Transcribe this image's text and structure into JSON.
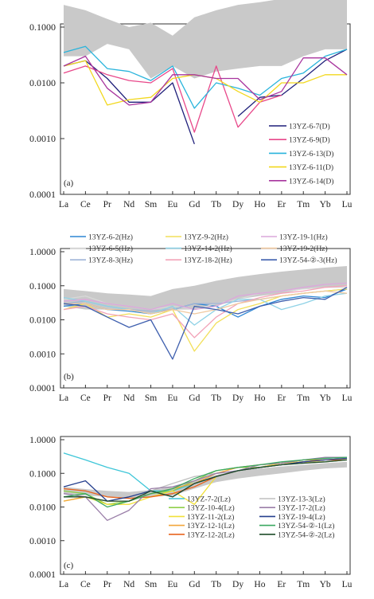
{
  "elements": [
    "La",
    "Ce",
    "Pr",
    "Nd",
    "Sm",
    "Eu",
    "Gd",
    "Tb",
    "Dy",
    "Ho",
    "Er",
    "Tm",
    "Yb",
    "Lu"
  ],
  "colors": {
    "band": "#c9c9c9",
    "axis": "#333333"
  },
  "chart_data": [
    {
      "type": "line",
      "panel_label": "(a)",
      "x": [
        "La",
        "Ce",
        "Pr",
        "Nd",
        "Sm",
        "Eu",
        "Gd",
        "Tb",
        "Dy",
        "Ho",
        "Er",
        "Tm",
        "Yb",
        "Lu"
      ],
      "y_scale": "log",
      "ylim": [
        0.0001,
        1.0
      ],
      "y_ticks": [
        "0.1000",
        "0.0100",
        "0.0010",
        "0.0001"
      ],
      "y_tick_values": [
        0.1,
        0.01,
        0.001,
        0.0001
      ],
      "band": {
        "lower": [
          0.03,
          0.03,
          0.05,
          0.04,
          0.012,
          0.02,
          0.012,
          0.016,
          0.018,
          0.02,
          0.02,
          0.03,
          0.04,
          0.04
        ],
        "upper": [
          0.25,
          0.2,
          0.14,
          0.1,
          0.12,
          0.07,
          0.15,
          0.2,
          0.25,
          0.28,
          0.32,
          0.35,
          0.4,
          0.45
        ]
      },
      "series": [
        {
          "name": "13YZ-6-7(D)",
          "color": "#1f1f7a",
          "values": [
            0.02,
            0.025,
            0.012,
            0.0045,
            0.0045,
            0.01,
            0.0008,
            null,
            0.0025,
            0.0055,
            0.006,
            0.012,
            0.025,
            0.04
          ]
        },
        {
          "name": "13YZ-6-9(D)",
          "color": "#e8488a",
          "values": [
            0.015,
            0.02,
            0.014,
            0.011,
            0.01,
            0.018,
            0.0013,
            0.02,
            0.0016,
            0.0045,
            0.006,
            null,
            null,
            null
          ]
        },
        {
          "name": "13YZ-6-13(D)",
          "color": "#29b4dc",
          "values": [
            0.035,
            0.045,
            0.018,
            0.016,
            0.011,
            0.02,
            0.0035,
            0.01,
            0.008,
            0.006,
            0.012,
            0.015,
            0.03,
            0.04
          ]
        },
        {
          "name": "13YZ-6-11(D)",
          "color": "#f2d81e",
          "values": [
            0.02,
            0.025,
            0.004,
            0.005,
            0.0055,
            0.012,
            0.014,
            0.012,
            0.007,
            0.0045,
            0.01,
            0.01,
            0.014,
            0.014
          ]
        },
        {
          "name": "13YZ-6-14(D)",
          "color": "#a8359e",
          "values": [
            0.02,
            0.03,
            0.008,
            0.004,
            0.0045,
            0.014,
            0.014,
            0.012,
            0.012,
            0.005,
            0.007,
            0.028,
            0.028,
            0.014
          ]
        }
      ]
    },
    {
      "type": "line",
      "panel_label": "(b)",
      "x": [
        "La",
        "Ce",
        "Pr",
        "Nd",
        "Sm",
        "Eu",
        "Gd",
        "Tb",
        "Dy",
        "Ho",
        "Er",
        "Tm",
        "Yb",
        "Lu"
      ],
      "y_scale": "log",
      "ylim": [
        0.0001,
        1.0
      ],
      "y_ticks": [
        "1.0000",
        "0.1000",
        "0.0100",
        "0.0010",
        "0.0001"
      ],
      "y_tick_values": [
        1.0,
        0.1,
        0.01,
        0.001,
        0.0001
      ],
      "band": {
        "lower": [
          0.025,
          0.02,
          0.02,
          0.02,
          0.015,
          0.02,
          0.02,
          0.025,
          0.04,
          0.05,
          0.06,
          0.08,
          0.09,
          0.1
        ],
        "upper": [
          0.08,
          0.07,
          0.06,
          0.055,
          0.05,
          0.08,
          0.1,
          0.14,
          0.18,
          0.22,
          0.26,
          0.3,
          0.34,
          0.38
        ]
      },
      "series": [
        {
          "name": "13YZ-6-2(Hz)",
          "color": "#2d86d4",
          "values": [
            0.025,
            0.03,
            0.02,
            0.018,
            0.015,
            0.02,
            0.03,
            0.025,
            0.012,
            0.025,
            0.04,
            0.05,
            0.045,
            0.08
          ]
        },
        {
          "name": "13YZ-6-5(Hz)",
          "color": "#d8d8d8",
          "values": [
            0.04,
            0.05,
            0.03,
            0.025,
            0.02,
            0.025,
            0.02,
            0.03,
            0.04,
            0.06,
            0.07,
            0.08,
            0.09,
            0.09
          ]
        },
        {
          "name": "13YZ-8-3(Hz)",
          "color": "#9fb4d8",
          "values": [
            0.03,
            0.035,
            0.025,
            0.02,
            0.018,
            0.02,
            0.03,
            0.03,
            0.035,
            0.04,
            0.05,
            0.06,
            0.07,
            0.08
          ]
        },
        {
          "name": "13YZ-9-2(Hz)",
          "color": "#f2df5a",
          "values": [
            0.02,
            0.03,
            0.012,
            0.015,
            0.012,
            0.02,
            0.0012,
            0.008,
            0.02,
            0.03,
            0.05,
            0.06,
            0.07,
            0.08
          ]
        },
        {
          "name": "13YZ-14-2(Hz)",
          "color": "#8fd2e6",
          "values": [
            0.045,
            0.035,
            0.025,
            0.02,
            0.015,
            0.025,
            0.007,
            0.02,
            0.04,
            0.04,
            0.02,
            0.03,
            0.05,
            0.06
          ]
        },
        {
          "name": "13YZ-18-2(Hz)",
          "color": "#f2a3b8",
          "values": [
            0.02,
            0.025,
            0.015,
            0.012,
            0.01,
            0.015,
            0.003,
            0.012,
            0.03,
            0.045,
            0.06,
            0.07,
            0.09,
            0.1
          ]
        },
        {
          "name": "13YZ-19-1(Hz)",
          "color": "#dca7dc",
          "values": [
            0.035,
            0.04,
            0.03,
            0.025,
            0.02,
            0.03,
            0.02,
            0.025,
            0.05,
            0.06,
            0.07,
            0.09,
            0.11,
            0.12
          ]
        },
        {
          "name": "13YZ-19-2(Hz)",
          "color": "#f0c9a0",
          "values": [
            0.03,
            0.03,
            0.02,
            0.02,
            0.015,
            0.02,
            0.015,
            0.02,
            0.03,
            0.04,
            0.05,
            0.06,
            0.07,
            0.06
          ]
        },
        {
          "name": "13YZ-54-②-3(Hz)",
          "color": "#3e5fae",
          "values": [
            0.03,
            0.025,
            0.012,
            0.006,
            0.01,
            0.0007,
            0.025,
            0.02,
            0.015,
            0.025,
            0.035,
            0.045,
            0.04,
            0.09
          ]
        }
      ]
    },
    {
      "type": "line",
      "panel_label": "(c)",
      "x": [
        "La",
        "Ce",
        "Pr",
        "Nd",
        "Sm",
        "Eu",
        "Gd",
        "Tb",
        "Dy",
        "Ho",
        "Er",
        "Tm",
        "Yb",
        "Lu"
      ],
      "y_scale": "log",
      "ylim": [
        0.0001,
        1.0
      ],
      "y_ticks": [
        "1.0000",
        "0.1000",
        "0.0100",
        "0.0010",
        "0.0001"
      ],
      "y_tick_values": [
        1.0,
        0.1,
        0.01,
        0.001,
        0.0001
      ],
      "band": {
        "lower": [
          0.025,
          0.022,
          0.02,
          0.018,
          0.02,
          0.022,
          0.035,
          0.055,
          0.07,
          0.085,
          0.1,
          0.12,
          0.14,
          0.15
        ],
        "upper": [
          0.04,
          0.034,
          0.03,
          0.028,
          0.032,
          0.04,
          0.06,
          0.09,
          0.12,
          0.14,
          0.16,
          0.18,
          0.2,
          0.22
        ]
      },
      "series": [
        {
          "name": "13YZ-7-2(Lz)",
          "color": "#3ec6d8",
          "values": [
            0.4,
            0.25,
            0.15,
            0.1,
            0.03,
            0.03,
            0.05,
            0.08,
            0.12,
            0.15,
            0.2,
            0.25,
            0.28,
            0.3
          ]
        },
        {
          "name": "13YZ-10-4(Lz)",
          "color": "#8fcf4a",
          "values": [
            0.03,
            0.025,
            0.012,
            0.015,
            0.025,
            0.03,
            0.06,
            0.12,
            0.15,
            0.15,
            0.2,
            0.22,
            0.25,
            0.25
          ]
        },
        {
          "name": "13YZ-11-2(Lz)",
          "color": "#f2e13a",
          "values": [
            0.015,
            0.02,
            0.012,
            0.012,
            0.02,
            0.03,
            0.012,
            0.08,
            0.12,
            0.15,
            0.2,
            0.22,
            0.22,
            0.25
          ]
        },
        {
          "name": "13YZ-12-1(Lz)",
          "color": "#f2a63a",
          "values": [
            0.015,
            0.02,
            0.015,
            0.015,
            0.025,
            0.035,
            0.05,
            0.1,
            0.15,
            0.18,
            0.2,
            0.25,
            0.25,
            0.28
          ]
        },
        {
          "name": "13YZ-12-2(Lz)",
          "color": "#e8641e",
          "values": [
            0.035,
            0.03,
            0.02,
            0.018,
            0.02,
            0.025,
            0.04,
            0.08,
            0.12,
            0.15,
            0.18,
            0.22,
            0.25,
            0.25
          ]
        },
        {
          "name": "13YZ-13-3(Lz)",
          "color": "#bfbfbf",
          "values": [
            0.02,
            0.02,
            0.015,
            0.015,
            0.03,
            0.05,
            0.08,
            0.1,
            0.12,
            0.15,
            0.18,
            0.2,
            0.22,
            0.25
          ]
        },
        {
          "name": "13YZ-17-2(Lz)",
          "color": "#9a7ea8",
          "values": [
            0.025,
            0.02,
            0.004,
            0.008,
            0.035,
            0.04,
            0.06,
            0.1,
            0.12,
            0.18,
            0.2,
            0.25,
            0.3,
            0.3
          ]
        },
        {
          "name": "13YZ-19-4(Lz)",
          "color": "#253f8e",
          "values": [
            0.04,
            0.06,
            0.015,
            0.02,
            0.03,
            0.02,
            0.05,
            0.08,
            0.12,
            0.15,
            0.18,
            0.22,
            0.25,
            0.28
          ]
        },
        {
          "name": "13YZ-54-②-1(Lz)",
          "color": "#3aa860",
          "values": [
            0.02,
            0.025,
            0.01,
            0.015,
            0.025,
            0.035,
            0.07,
            0.12,
            0.15,
            0.18,
            0.22,
            0.25,
            0.28,
            0.3
          ]
        },
        {
          "name": "13YZ-54-②-2(Lz)",
          "color": "#1f4d2a",
          "values": [
            0.02,
            0.02,
            0.015,
            0.015,
            0.03,
            0.02,
            0.05,
            0.08,
            0.12,
            0.15,
            0.18,
            0.2,
            0.22,
            0.25
          ]
        }
      ]
    }
  ]
}
